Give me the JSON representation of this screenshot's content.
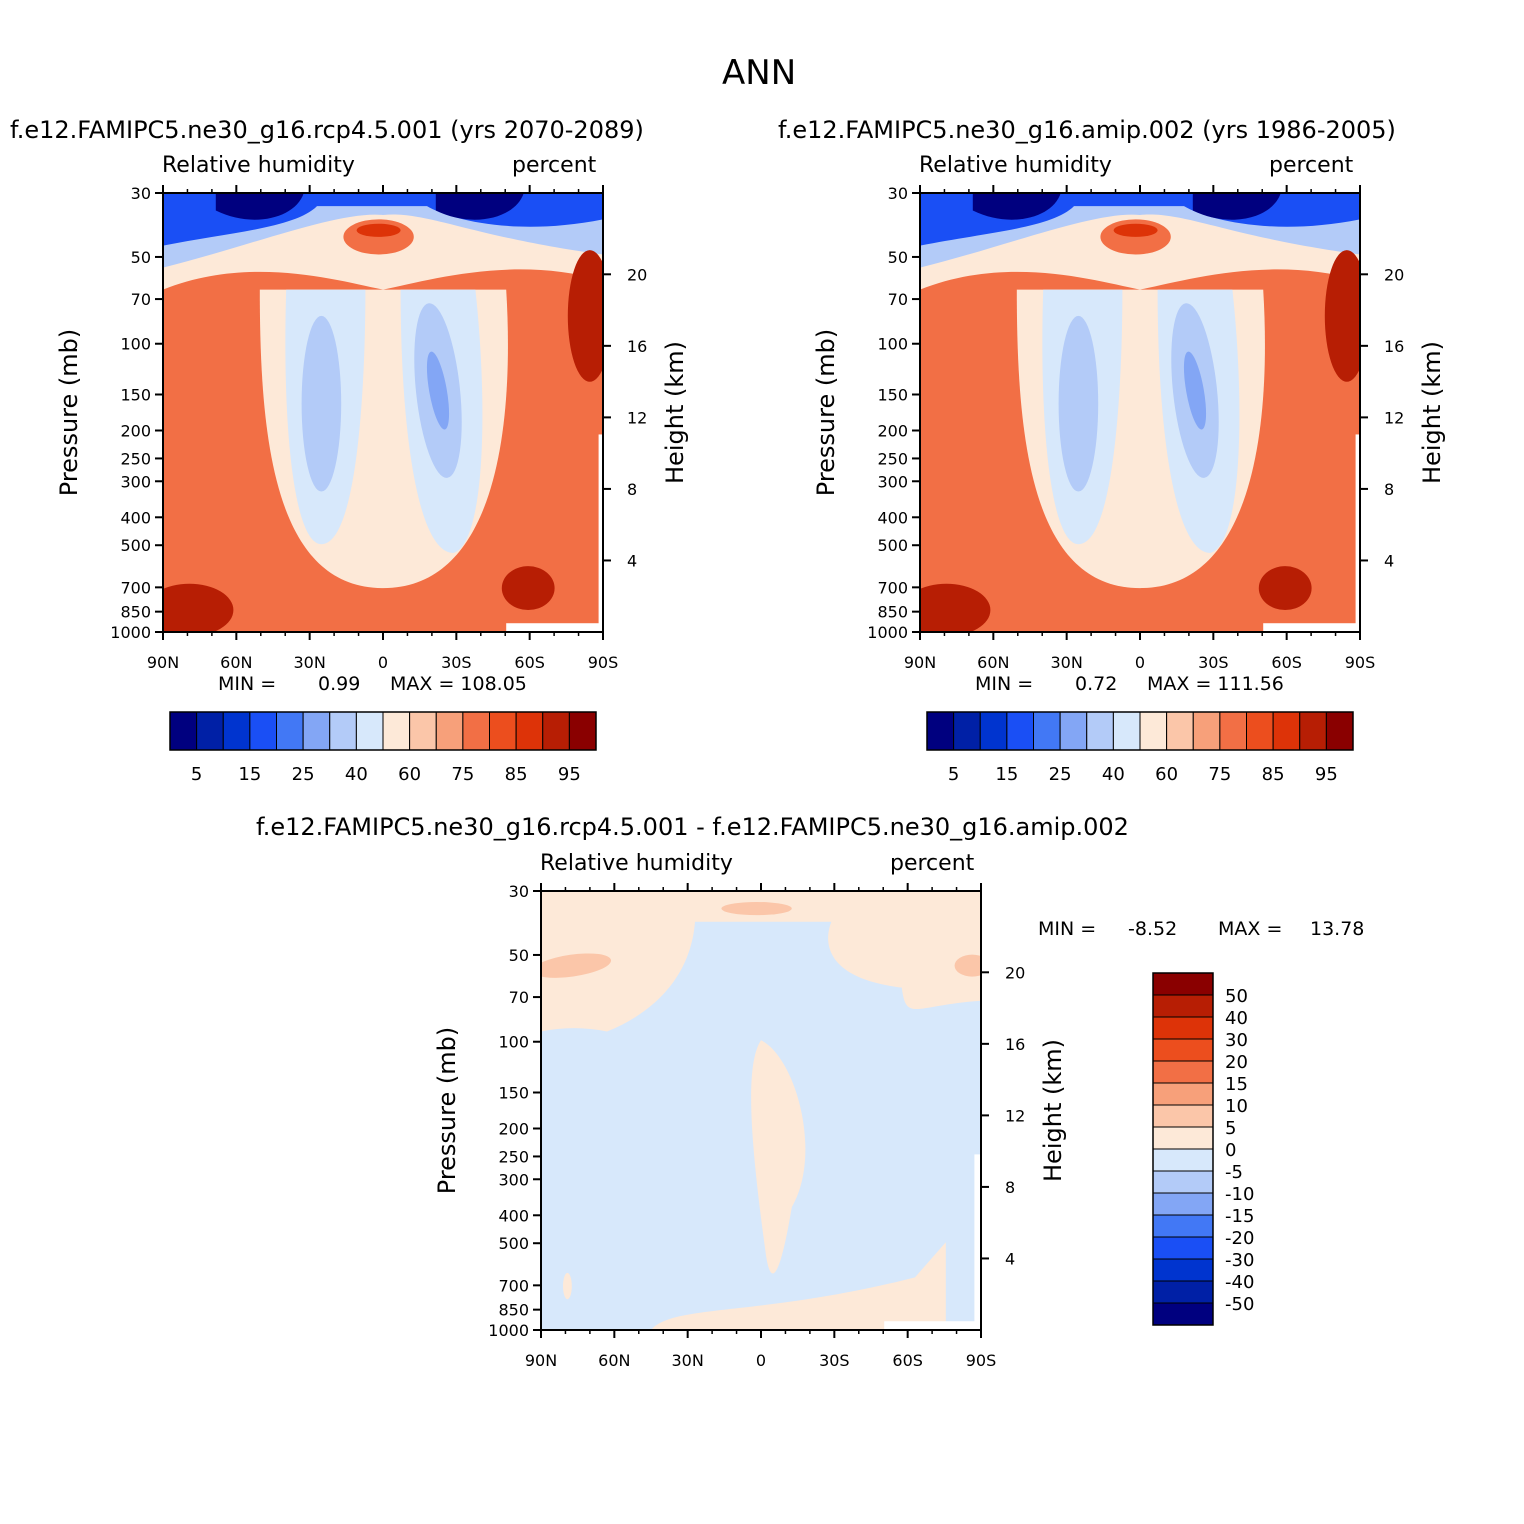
{
  "figure": {
    "title": "ANN"
  },
  "chart_data": [
    {
      "type": "heatmap",
      "title": "f.e12.FAMIPC5.ne30_g16.rcp4.5.001 (yrs 2070-2089)",
      "variable": "Relative humidity",
      "units": "percent",
      "xlabel": "",
      "ylabel": "Pressure (mb)",
      "y2label": "Height (km)",
      "x_ticks": [
        "90N",
        "60N",
        "30N",
        "0",
        "30S",
        "60S",
        "90S"
      ],
      "x_tick_values": [
        90,
        60,
        30,
        0,
        -30,
        -60,
        -90
      ],
      "y_ticks": [
        30,
        50,
        70,
        100,
        150,
        200,
        250,
        300,
        400,
        500,
        700,
        850,
        1000
      ],
      "y_scale": "log",
      "y2_ticks": [
        20,
        16,
        12,
        8,
        4
      ],
      "xlim": [
        90,
        -90
      ],
      "ylim": [
        1000,
        30
      ],
      "min_label": "MIN =",
      "min_value": "0.99",
      "max_label": "MAX = 108.05",
      "colorbar": {
        "orientation": "horizontal",
        "tick_labels": [
          "5",
          "15",
          "25",
          "40",
          "60",
          "75",
          "85",
          "95"
        ],
        "colors": [
          "#00007f",
          "#0020a6",
          "#0034cf",
          "#1a4ff5",
          "#4278f5",
          "#83a6f5",
          "#b3cbf8",
          "#d7e8fb",
          "#fde9d8",
          "#fbc6a9",
          "#f7a07a",
          "#f26f45",
          "#ec4e1e",
          "#dd3308",
          "#b71e04",
          "#8a0000"
        ]
      }
    },
    {
      "type": "heatmap",
      "title": "f.e12.FAMIPC5.ne30_g16.amip.002 (yrs 1986-2005)",
      "variable": "Relative humidity",
      "units": "percent",
      "xlabel": "",
      "ylabel": "Pressure (mb)",
      "y2label": "Height (km)",
      "x_ticks": [
        "90N",
        "60N",
        "30N",
        "0",
        "30S",
        "60S",
        "90S"
      ],
      "x_tick_values": [
        90,
        60,
        30,
        0,
        -30,
        -60,
        -90
      ],
      "y_ticks": [
        30,
        50,
        70,
        100,
        150,
        200,
        250,
        300,
        400,
        500,
        700,
        850,
        1000
      ],
      "y_scale": "log",
      "y2_ticks": [
        20,
        16,
        12,
        8,
        4
      ],
      "xlim": [
        90,
        -90
      ],
      "ylim": [
        1000,
        30
      ],
      "min_label": "MIN =",
      "min_value": "0.72",
      "max_label": "MAX = 111.56",
      "colorbar": {
        "orientation": "horizontal",
        "tick_labels": [
          "5",
          "15",
          "25",
          "40",
          "60",
          "75",
          "85",
          "95"
        ],
        "colors": [
          "#00007f",
          "#0020a6",
          "#0034cf",
          "#1a4ff5",
          "#4278f5",
          "#83a6f5",
          "#b3cbf8",
          "#d7e8fb",
          "#fde9d8",
          "#fbc6a9",
          "#f7a07a",
          "#f26f45",
          "#ec4e1e",
          "#dd3308",
          "#b71e04",
          "#8a0000"
        ]
      }
    },
    {
      "type": "heatmap",
      "title": "f.e12.FAMIPC5.ne30_g16.rcp4.5.001 - f.e12.FAMIPC5.ne30_g16.amip.002",
      "variable": "Relative humidity",
      "units": "percent",
      "xlabel": "",
      "ylabel": "Pressure (mb)",
      "y2label": "Height (km)",
      "x_ticks": [
        "90N",
        "60N",
        "30N",
        "0",
        "30S",
        "60S",
        "90S"
      ],
      "x_tick_values": [
        90,
        60,
        30,
        0,
        -30,
        -60,
        -90
      ],
      "y_ticks": [
        30,
        50,
        70,
        100,
        150,
        200,
        250,
        300,
        400,
        500,
        700,
        850,
        1000
      ],
      "y_scale": "log",
      "y2_ticks": [
        20,
        16,
        12,
        8,
        4
      ],
      "xlim": [
        90,
        -90
      ],
      "ylim": [
        1000,
        30
      ],
      "min_label": "MIN =",
      "min_value": "-8.52",
      "max_label": "MAX =",
      "max_value": "13.78",
      "colorbar": {
        "orientation": "vertical",
        "tick_labels": [
          "50",
          "40",
          "30",
          "20",
          "15",
          "10",
          "5",
          "0",
          "-5",
          "-10",
          "-15",
          "-20",
          "-30",
          "-40",
          "-50"
        ],
        "colors": [
          "#8a0000",
          "#b71e04",
          "#dd3308",
          "#ec4e1e",
          "#f26f45",
          "#f7a07a",
          "#fbc6a9",
          "#fde9d8",
          "#d7e8fb",
          "#b3cbf8",
          "#83a6f5",
          "#4278f5",
          "#1a4ff5",
          "#0034cf",
          "#0020a6",
          "#00007f"
        ]
      }
    }
  ]
}
